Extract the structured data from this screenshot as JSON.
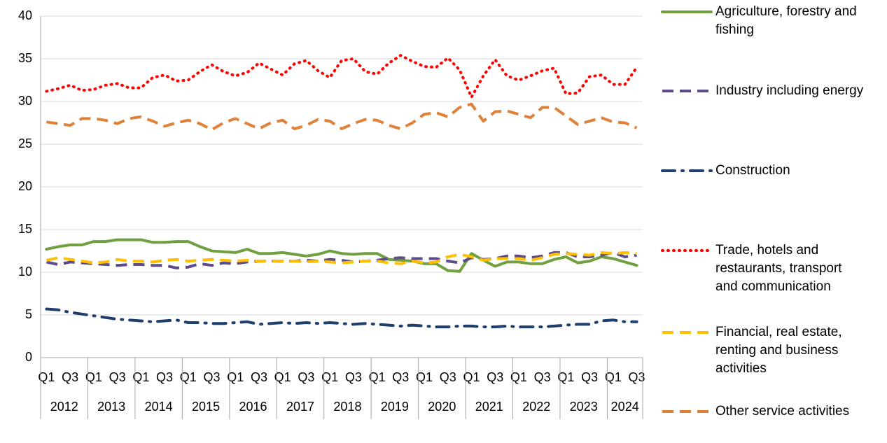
{
  "chart_data": {
    "type": "line",
    "categories": [
      "Q1",
      null,
      "Q3",
      null,
      "Q1",
      null,
      "Q3",
      null,
      "Q1",
      null,
      "Q3",
      null,
      "Q1",
      null,
      "Q3",
      null,
      "Q1",
      null,
      "Q3",
      null,
      "Q1",
      null,
      "Q3",
      null,
      "Q1",
      null,
      "Q3",
      null,
      "Q1",
      null,
      "Q3",
      null,
      "Q1",
      null,
      "Q3",
      null,
      "Q1",
      null,
      "Q3",
      null,
      "Q1",
      null,
      "Q3",
      null,
      "Q1",
      null,
      "Q3",
      null,
      "Q1",
      null,
      "Q3"
    ],
    "x_groups": [
      "2012",
      "2013",
      "2014",
      "2015",
      "2016",
      "2017",
      "2018",
      "2019",
      "2020",
      "2021",
      "2022",
      "2023",
      "2024"
    ],
    "ylim": [
      0,
      40
    ],
    "yticks": [
      0,
      5,
      10,
      15,
      20,
      25,
      30,
      35,
      40
    ],
    "grid": true,
    "legend": "right",
    "series": [
      {
        "name": "Agriculture, forestry and fishing",
        "color": "#70a040",
        "dash": "solid",
        "values": [
          12.7,
          13.0,
          13.2,
          13.2,
          13.6,
          13.6,
          13.8,
          13.8,
          13.8,
          13.5,
          13.5,
          13.6,
          13.6,
          13.0,
          12.5,
          12.4,
          12.3,
          12.7,
          12.2,
          12.2,
          12.3,
          12.1,
          11.9,
          12.1,
          12.5,
          12.2,
          12.1,
          12.2,
          12.2,
          11.5,
          11.4,
          11.3,
          11.0,
          11.0,
          10.2,
          10.1,
          12.2,
          11.4,
          10.7,
          11.2,
          11.2,
          11.0,
          11.0,
          11.5,
          11.8,
          11.1,
          11.3,
          11.8,
          11.6,
          11.2,
          10.8
        ]
      },
      {
        "name": "Industry including energy",
        "color": "#5e4b8b",
        "dash": "dash",
        "values": [
          11.2,
          10.9,
          11.2,
          11.1,
          11.0,
          10.9,
          10.8,
          10.9,
          10.9,
          10.8,
          10.8,
          10.5,
          10.6,
          11.0,
          10.8,
          11.1,
          11.0,
          11.2,
          11.3,
          11.3,
          11.3,
          11.3,
          11.4,
          11.3,
          11.5,
          11.4,
          11.2,
          11.3,
          11.4,
          11.6,
          11.7,
          11.6,
          11.6,
          11.6,
          11.3,
          11.1,
          11.7,
          11.5,
          11.6,
          11.9,
          11.9,
          11.7,
          11.9,
          12.3,
          12.3,
          11.8,
          11.8,
          12.0,
          12.3,
          11.8,
          12.0
        ]
      },
      {
        "name": "Construction",
        "color": "#1f3f6e",
        "dash": "dashdot",
        "values": [
          5.7,
          5.6,
          5.3,
          5.1,
          4.9,
          4.7,
          4.5,
          4.4,
          4.3,
          4.2,
          4.3,
          4.4,
          4.1,
          4.1,
          4.0,
          4.0,
          4.1,
          4.2,
          3.9,
          4.0,
          4.1,
          4.0,
          4.1,
          4.0,
          4.1,
          4.0,
          3.9,
          4.0,
          3.9,
          3.8,
          3.7,
          3.8,
          3.7,
          3.6,
          3.6,
          3.7,
          3.7,
          3.6,
          3.6,
          3.7,
          3.6,
          3.6,
          3.6,
          3.7,
          3.8,
          3.9,
          3.9,
          4.3,
          4.4,
          4.2,
          4.2
        ]
      },
      {
        "name": "Trade, hotels and restaurants, transport and communication",
        "color": "#ff0000",
        "dash": "dot",
        "values": [
          31.2,
          31.5,
          31.9,
          31.3,
          31.4,
          31.9,
          32.1,
          31.6,
          31.6,
          32.8,
          33.1,
          32.4,
          32.5,
          33.5,
          34.3,
          33.5,
          33.0,
          33.4,
          34.5,
          33.8,
          33.1,
          34.4,
          34.8,
          33.6,
          32.8,
          34.8,
          35.0,
          33.5,
          33.2,
          34.5,
          35.4,
          34.7,
          34.1,
          34.0,
          35.1,
          33.7,
          30.5,
          33.0,
          34.9,
          33.0,
          32.5,
          33.0,
          33.6,
          33.9,
          30.9,
          31.0,
          32.9,
          33.1,
          32.0,
          32.0,
          34.0
        ]
      },
      {
        "name": "Financial, real estate, renting and business activities",
        "color": "#ffc000",
        "dash": "dash",
        "values": [
          11.4,
          11.7,
          11.5,
          11.3,
          11.1,
          11.2,
          11.5,
          11.3,
          11.3,
          11.2,
          11.4,
          11.5,
          11.3,
          11.4,
          11.5,
          11.4,
          11.3,
          11.4,
          11.3,
          11.3,
          11.3,
          11.3,
          11.2,
          11.3,
          11.2,
          11.1,
          11.2,
          11.3,
          11.3,
          11.1,
          11.0,
          11.3,
          11.1,
          11.2,
          11.8,
          12.1,
          11.8,
          11.4,
          11.6,
          11.6,
          11.6,
          11.4,
          11.7,
          12.1,
          12.2,
          12.1,
          12.0,
          12.3,
          12.2,
          12.3,
          12.2
        ]
      },
      {
        "name": "Other service activities",
        "color": "#e0813a",
        "dash": "dash",
        "values": [
          27.6,
          27.4,
          27.2,
          28.0,
          28.0,
          27.8,
          27.4,
          28.0,
          28.2,
          27.7,
          27.1,
          27.5,
          27.8,
          27.4,
          26.7,
          27.5,
          28.0,
          27.4,
          26.8,
          27.5,
          27.8,
          26.8,
          27.2,
          27.9,
          27.7,
          26.8,
          27.4,
          27.9,
          27.8,
          27.2,
          26.8,
          27.5,
          28.5,
          28.7,
          28.2,
          29.3,
          29.7,
          27.7,
          28.8,
          28.9,
          28.5,
          28.1,
          29.3,
          29.3,
          28.3,
          27.3,
          27.7,
          28.1,
          27.6,
          27.5,
          26.9
        ]
      }
    ]
  }
}
